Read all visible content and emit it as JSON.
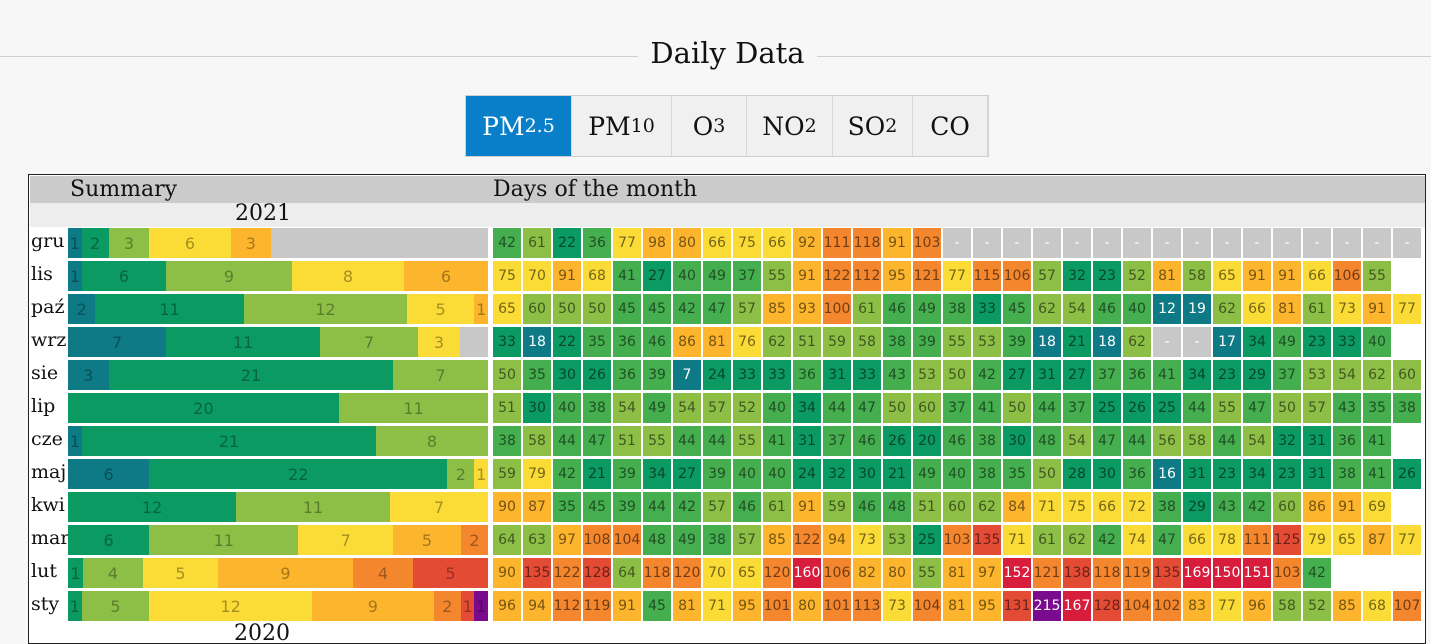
{
  "header": {
    "title": "Daily Data"
  },
  "tabs": [
    {
      "base": "PM",
      "sub": "2.5",
      "active": true
    },
    {
      "base": "PM",
      "sub": "10",
      "active": false
    },
    {
      "base": "O",
      "sub": "3",
      "active": false
    },
    {
      "base": "NO",
      "sub": "2",
      "active": false
    },
    {
      "base": "SO",
      "sub": "2",
      "active": false
    },
    {
      "base": "CO",
      "sub": "",
      "active": false
    }
  ],
  "panel": {
    "summary_label": "Summary",
    "days_label": "Days of the month",
    "year": "2021",
    "next_year": "2020"
  },
  "colors": {
    "dark_teal": "#0d7a85",
    "dark_green": "#0a9a62",
    "green": "#45ae4f",
    "lime": "#8dbf46",
    "yellow": "#fbdb35",
    "light_orange": "#fcb52c",
    "orange": "#f4862d",
    "red_orange": "#e44b35",
    "red": "#d81d3c",
    "purple": "#7a0b8e",
    "missing": "#c8c8c8"
  },
  "months": [
    {
      "label": "gru",
      "summary": [
        1,
        2,
        3,
        6,
        3,
        0,
        0,
        0
      ],
      "missing_summary": 16,
      "days": [
        "42",
        "61",
        "22",
        "36",
        "77",
        "98",
        "80",
        "66",
        "75",
        "66",
        "92",
        "111",
        "118",
        "91",
        "103",
        "-",
        "-",
        "-",
        "-",
        "-",
        "-",
        "-",
        "-",
        "-",
        "-",
        "-",
        "-",
        "-",
        "-",
        "-",
        "-"
      ]
    },
    {
      "label": "lis",
      "summary": [
        1,
        6,
        9,
        8,
        6,
        0,
        0,
        0
      ],
      "missing_summary": 0,
      "days": [
        "75",
        "70",
        "91",
        "68",
        "41",
        "27",
        "40",
        "49",
        "37",
        "55",
        "91",
        "122",
        "112",
        "95",
        "121",
        "77",
        "115",
        "106",
        "57",
        "32",
        "23",
        "52",
        "81",
        "58",
        "65",
        "91",
        "91",
        "66",
        "106",
        "55"
      ]
    },
    {
      "label": "paź",
      "summary": [
        2,
        11,
        12,
        5,
        1,
        0,
        0,
        0
      ],
      "missing_summary": 0,
      "days": [
        "65",
        "60",
        "50",
        "50",
        "45",
        "45",
        "42",
        "47",
        "57",
        "85",
        "93",
        "100",
        "61",
        "46",
        "49",
        "38",
        "33",
        "45",
        "62",
        "54",
        "46",
        "40",
        "12",
        "19",
        "62",
        "66",
        "81",
        "61",
        "73",
        "91",
        "77"
      ]
    },
    {
      "label": "wrz",
      "summary": [
        7,
        11,
        7,
        3,
        0,
        0,
        0,
        0
      ],
      "missing_summary": 2,
      "days": [
        "33",
        "18",
        "22",
        "35",
        "36",
        "46",
        "86",
        "81",
        "76",
        "62",
        "51",
        "59",
        "58",
        "38",
        "39",
        "55",
        "53",
        "39",
        "18",
        "21",
        "18",
        "62",
        "-",
        "-",
        "17",
        "34",
        "49",
        "23",
        "33",
        "40"
      ]
    },
    {
      "label": "sie",
      "summary": [
        3,
        21,
        7,
        0,
        0,
        0,
        0,
        0
      ],
      "missing_summary": 0,
      "days": [
        "50",
        "35",
        "30",
        "26",
        "36",
        "39",
        "7",
        "24",
        "33",
        "33",
        "36",
        "31",
        "33",
        "43",
        "53",
        "50",
        "42",
        "27",
        "31",
        "27",
        "37",
        "36",
        "41",
        "34",
        "23",
        "29",
        "37",
        "53",
        "54",
        "62",
        "60"
      ]
    },
    {
      "label": "lip",
      "summary": [
        0,
        20,
        11,
        0,
        0,
        0,
        0,
        0
      ],
      "missing_summary": 0,
      "days": [
        "51",
        "30",
        "40",
        "38",
        "54",
        "49",
        "54",
        "57",
        "52",
        "40",
        "34",
        "44",
        "47",
        "50",
        "60",
        "37",
        "41",
        "50",
        "44",
        "37",
        "25",
        "26",
        "25",
        "44",
        "55",
        "47",
        "50",
        "57",
        "43",
        "35",
        "38"
      ]
    },
    {
      "label": "cze",
      "summary": [
        1,
        21,
        8,
        0,
        0,
        0,
        0,
        0
      ],
      "missing_summary": 0,
      "days": [
        "38",
        "58",
        "44",
        "47",
        "51",
        "55",
        "44",
        "44",
        "55",
        "41",
        "31",
        "37",
        "46",
        "26",
        "20",
        "46",
        "38",
        "30",
        "48",
        "54",
        "47",
        "44",
        "56",
        "58",
        "44",
        "54",
        "32",
        "31",
        "36",
        "41"
      ]
    },
    {
      "label": "maj",
      "summary": [
        6,
        22,
        2,
        1,
        0,
        0,
        0,
        0
      ],
      "missing_summary": 0,
      "days": [
        "59",
        "79",
        "42",
        "21",
        "39",
        "34",
        "27",
        "39",
        "40",
        "40",
        "24",
        "32",
        "30",
        "21",
        "49",
        "40",
        "38",
        "35",
        "50",
        "28",
        "30",
        "36",
        "16",
        "31",
        "23",
        "34",
        "23",
        "31",
        "38",
        "41",
        "26"
      ]
    },
    {
      "label": "kwi",
      "summary": [
        0,
        12,
        11,
        7,
        0,
        0,
        0,
        0
      ],
      "missing_summary": 0,
      "days": [
        "90",
        "87",
        "35",
        "45",
        "39",
        "44",
        "42",
        "57",
        "46",
        "61",
        "91",
        "59",
        "46",
        "48",
        "51",
        "60",
        "62",
        "84",
        "71",
        "75",
        "66",
        "72",
        "38",
        "29",
        "43",
        "42",
        "60",
        "86",
        "91",
        "69"
      ]
    },
    {
      "label": "mar",
      "summary": [
        0,
        6,
        11,
        7,
        5,
        2,
        0,
        0
      ],
      "missing_summary": 0,
      "days": [
        "64",
        "63",
        "97",
        "108",
        "104",
        "48",
        "49",
        "38",
        "57",
        "85",
        "122",
        "94",
        "73",
        "53",
        "25",
        "103",
        "135",
        "71",
        "61",
        "62",
        "42",
        "74",
        "47",
        "66",
        "78",
        "111",
        "125",
        "79",
        "65",
        "87",
        "77"
      ]
    },
    {
      "label": "lut",
      "summary": [
        0,
        1,
        4,
        5,
        9,
        4,
        5,
        0
      ],
      "missing_summary": 0,
      "days": [
        "90",
        "135",
        "122",
        "128",
        "64",
        "118",
        "120",
        "70",
        "65",
        "120",
        "160",
        "106",
        "82",
        "80",
        "55",
        "81",
        "97",
        "152",
        "121",
        "138",
        "118",
        "119",
        "135",
        "169",
        "150",
        "151",
        "103",
        "42"
      ]
    },
    {
      "label": "sty",
      "summary": [
        0,
        1,
        5,
        12,
        9,
        2,
        1,
        1
      ],
      "missing_summary": 0,
      "days": [
        "96",
        "94",
        "112",
        "119",
        "91",
        "45",
        "81",
        "71",
        "95",
        "101",
        "80",
        "101",
        "113",
        "73",
        "104",
        "81",
        "95",
        "131",
        "215",
        "167",
        "128",
        "104",
        "102",
        "83",
        "77",
        "96",
        "58",
        "52",
        "85",
        "68",
        "107"
      ]
    }
  ]
}
